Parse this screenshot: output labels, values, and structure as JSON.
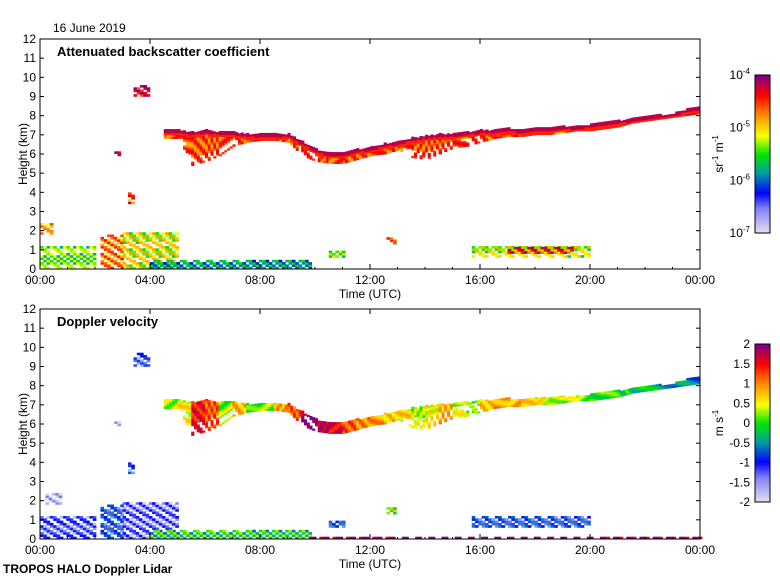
{
  "date_label": "16 June 2019",
  "footer_label": "TROPOS HALO Doppler Lidar",
  "chart_data": [
    {
      "type": "heatmap",
      "title": "Attenuated backscatter coefficient",
      "xlabel": "Time (UTC)",
      "ylabel": "Height (km)",
      "xlim": [
        0,
        24
      ],
      "ylim": [
        0,
        12
      ],
      "xticks": [
        "00:00",
        "04:00",
        "08:00",
        "12:00",
        "16:00",
        "20:00",
        "00:00"
      ],
      "yticks": [
        "0",
        "1",
        "2",
        "3",
        "4",
        "5",
        "6",
        "7",
        "8",
        "9",
        "10",
        "11",
        "12"
      ],
      "colorbar": {
        "label_base": "sr",
        "label_exp1": "-1",
        "label_mid": " m",
        "label_exp2": "-1",
        "scale": "log",
        "range": [
          -7,
          -4
        ],
        "ticks": [
          {
            "base": "10",
            "exp": "-4"
          },
          {
            "base": "10",
            "exp": "-5"
          },
          {
            "base": "10",
            "exp": "-6"
          },
          {
            "base": "10",
            "exp": "-7"
          }
        ]
      },
      "features": [
        {
          "t0": 3.4,
          "t1": 3.9,
          "h0": 9.0,
          "h1": 9.5,
          "v": -4.3
        },
        {
          "t0": 2.7,
          "t1": 2.9,
          "h0": 5.9,
          "h1": 6.1,
          "v": -4.4
        },
        {
          "t0": 3.2,
          "t1": 3.4,
          "h0": 3.4,
          "h1": 3.9,
          "v": -4.6
        },
        {
          "t0": 0.0,
          "t1": 0.4,
          "h0": 1.8,
          "h1": 2.4,
          "v": -5.0
        },
        {
          "t0": 0.0,
          "t1": 2.0,
          "h0": 0.0,
          "h1": 1.2,
          "v": -5.5
        },
        {
          "t0": 2.2,
          "t1": 3.0,
          "h0": 0.0,
          "h1": 1.7,
          "v": -4.8
        },
        {
          "t0": 3.0,
          "t1": 5.0,
          "h0": 0.0,
          "h1": 1.9,
          "v": -5.2
        },
        {
          "t0": 4.0,
          "t1": 9.8,
          "h0": 0.0,
          "h1": 0.4,
          "v": -5.9
        },
        {
          "t0": 12.6,
          "t1": 12.9,
          "h0": 1.3,
          "h1": 1.6,
          "v": -4.8
        },
        {
          "t0": 15.7,
          "t1": 20.0,
          "h0": 0.6,
          "h1": 1.1,
          "v": -5.3
        },
        {
          "t0": 17.0,
          "t1": 19.3,
          "h0": 0.8,
          "h1": 1.1,
          "v": -4.5
        },
        {
          "t0": 10.5,
          "t1": 11.0,
          "h0": 0.6,
          "h1": 0.9,
          "v": -5.4
        }
      ],
      "layer": [
        [
          4.5,
          6.8,
          7.2
        ],
        [
          5.0,
          6.8,
          7.2
        ],
        [
          5.5,
          5.4,
          7.1
        ],
        [
          6.0,
          5.6,
          7.2
        ],
        [
          6.5,
          5.9,
          7.1
        ],
        [
          7.0,
          6.4,
          7.1
        ],
        [
          7.5,
          6.6,
          7.0
        ],
        [
          8.0,
          6.7,
          7.0
        ],
        [
          8.5,
          6.7,
          7.0
        ],
        [
          9.0,
          6.6,
          7.0
        ],
        [
          9.5,
          5.9,
          6.6
        ],
        [
          10.0,
          5.6,
          6.2
        ],
        [
          10.5,
          5.5,
          6.0
        ],
        [
          11.0,
          5.5,
          6.0
        ],
        [
          11.5,
          5.7,
          6.2
        ],
        [
          12.0,
          5.9,
          6.3
        ],
        [
          12.5,
          6.0,
          6.5
        ],
        [
          13.0,
          6.2,
          6.6
        ],
        [
          13.5,
          5.8,
          6.8
        ],
        [
          14.0,
          5.7,
          6.9
        ],
        [
          14.5,
          6.0,
          7.0
        ],
        [
          15.0,
          6.3,
          7.0
        ],
        [
          15.5,
          6.4,
          7.1
        ],
        [
          16.0,
          6.6,
          7.2
        ],
        [
          16.5,
          6.8,
          7.2
        ],
        [
          17.0,
          6.9,
          7.3
        ],
        [
          17.5,
          6.9,
          7.2
        ],
        [
          18.0,
          7.0,
          7.3
        ],
        [
          18.5,
          7.0,
          7.3
        ],
        [
          19.0,
          7.1,
          7.4
        ],
        [
          19.5,
          7.2,
          7.4
        ],
        [
          20.0,
          7.2,
          7.5
        ],
        [
          20.5,
          7.3,
          7.6
        ],
        [
          21.0,
          7.4,
          7.7
        ],
        [
          21.5,
          7.6,
          7.8
        ],
        [
          22.0,
          7.7,
          7.9
        ],
        [
          22.5,
          7.8,
          8.0
        ],
        [
          23.0,
          7.9,
          8.1
        ],
        [
          23.5,
          8.0,
          8.3
        ],
        [
          24.0,
          8.1,
          8.4
        ]
      ]
    },
    {
      "type": "heatmap",
      "title": "Doppler velocity",
      "xlabel": "Time (UTC)",
      "ylabel": "Height (km)",
      "xlim": [
        0,
        24
      ],
      "ylim": [
        0,
        12
      ],
      "xticks": [
        "00:00",
        "04:00",
        "08:00",
        "12:00",
        "16:00",
        "20:00",
        "00:00"
      ],
      "yticks": [
        "0",
        "1",
        "2",
        "3",
        "4",
        "5",
        "6",
        "7",
        "8",
        "9",
        "10",
        "11",
        "12"
      ],
      "colorbar": {
        "label_base": "m",
        "label_exp1": "",
        "label_mid": " s",
        "label_exp2": "-1",
        "scale": "linear",
        "range": [
          -2,
          2
        ],
        "ticks": [
          "2",
          "1.5",
          "1",
          "0.5",
          "0",
          "-0.5",
          "-1",
          "-1.5",
          "-2"
        ]
      },
      "features": [
        {
          "t0": 3.4,
          "t1": 3.9,
          "h0": 9.0,
          "h1": 9.6,
          "v": -1.3
        },
        {
          "t0": 2.7,
          "t1": 2.9,
          "h0": 5.9,
          "h1": 6.1,
          "v": -2.0
        },
        {
          "t0": 3.2,
          "t1": 3.4,
          "h0": 3.4,
          "h1": 3.9,
          "v": -1.2
        },
        {
          "t0": 0.2,
          "t1": 0.8,
          "h0": 1.8,
          "h1": 2.3,
          "v": -1.9
        },
        {
          "t0": 0.0,
          "t1": 2.0,
          "h0": 0.0,
          "h1": 1.2,
          "v": -1.4
        },
        {
          "t0": 2.2,
          "t1": 3.0,
          "h0": 0.0,
          "h1": 1.7,
          "v": -1.1
        },
        {
          "t0": 3.0,
          "t1": 5.0,
          "h0": 0.0,
          "h1": 1.9,
          "v": -1.5
        },
        {
          "t0": 4.0,
          "t1": 9.8,
          "h0": 0.0,
          "h1": 0.4,
          "v": -0.2
        },
        {
          "t0": 9.8,
          "t1": 24.0,
          "h0": 0.0,
          "h1": 0.08,
          "v": 2.0
        },
        {
          "t0": 12.6,
          "t1": 12.9,
          "h0": 1.3,
          "h1": 1.6,
          "v": 0.2
        },
        {
          "t0": 15.7,
          "t1": 20.0,
          "h0": 0.6,
          "h1": 1.1,
          "v": -1.1
        },
        {
          "t0": 10.5,
          "t1": 11.0,
          "h0": 0.6,
          "h1": 0.9,
          "v": -1.0
        }
      ],
      "layer_values": [
        0.3,
        0.5,
        1.5,
        1.2,
        0.2,
        0.8,
        0.0,
        0.2,
        0.9,
        1.2,
        2.0,
        1.8,
        1.6,
        1.2,
        1.0,
        0.9,
        0.7,
        0.6,
        0.3,
        0.5,
        0.8,
        0.4,
        0.1,
        0.7,
        0.9,
        0.8,
        0.6,
        0.5,
        0.4,
        0.3,
        0.2,
        0.1,
        0.0,
        -0.1,
        -0.2,
        -0.3,
        -0.4,
        -0.5,
        -0.6,
        -0.7
      ]
    }
  ]
}
